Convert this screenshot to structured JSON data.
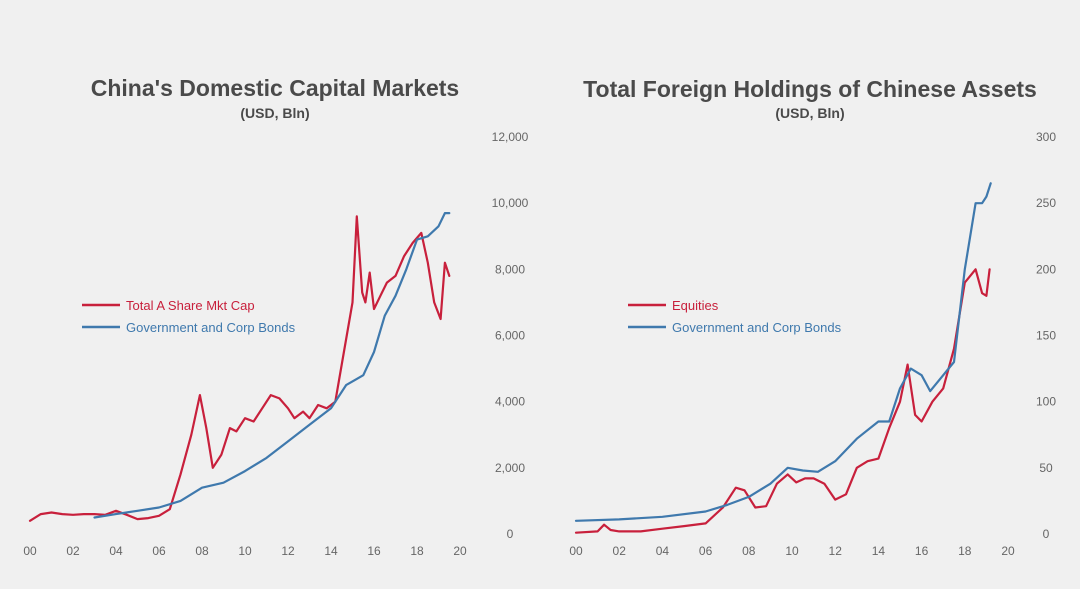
{
  "colors": {
    "red": "#c8203c",
    "blue": "#3f79ad",
    "text": "#4a4a4a",
    "tick": "#666666",
    "background": "#f0f0f0"
  },
  "chart_data": [
    {
      "type": "line",
      "title": "China's Domestic Capital Markets",
      "subtitle": "(USD, Bln)",
      "xlabel": "",
      "ylabel": "",
      "xlim": [
        2000,
        2020
      ],
      "ylim": [
        0,
        12000
      ],
      "x_ticks": [
        "00",
        "02",
        "04",
        "06",
        "08",
        "10",
        "12",
        "14",
        "16",
        "18",
        "20"
      ],
      "y_ticks": [
        "0",
        "2,000",
        "4,000",
        "6,000",
        "8,000",
        "10,000",
        "12,000"
      ],
      "y_axis_side": "right",
      "legend_position": "middle-left",
      "series": [
        {
          "name": "Total A Share Mkt Cap",
          "color": "#c8203c",
          "x": [
            2000,
            2000.5,
            2001,
            2001.5,
            2002,
            2002.5,
            2003,
            2003.5,
            2004,
            2004.5,
            2005,
            2005.5,
            2006,
            2006.5,
            2007,
            2007.5,
            2007.9,
            2008.2,
            2008.5,
            2008.9,
            2009.3,
            2009.6,
            2010,
            2010.4,
            2010.8,
            2011.2,
            2011.6,
            2012,
            2012.3,
            2012.7,
            2013,
            2013.4,
            2013.8,
            2014.2,
            2014.6,
            2015.0,
            2015.2,
            2015.45,
            2015.6,
            2015.8,
            2016,
            2016.3,
            2016.6,
            2017,
            2017.4,
            2017.8,
            2018.2,
            2018.5,
            2018.8,
            2019.1,
            2019.3,
            2019.5
          ],
          "values": [
            400,
            600,
            650,
            600,
            580,
            600,
            600,
            580,
            700,
            580,
            450,
            480,
            550,
            750,
            1800,
            3000,
            4200,
            3200,
            2000,
            2400,
            3200,
            3100,
            3500,
            3400,
            3800,
            4200,
            4100,
            3800,
            3500,
            3700,
            3500,
            3900,
            3800,
            4000,
            5500,
            7000,
            9600,
            7300,
            7000,
            7900,
            6800,
            7200,
            7600,
            7800,
            8400,
            8800,
            9100,
            8200,
            7000,
            6500,
            8200,
            7800
          ]
        },
        {
          "name": "Government and Corp Bonds",
          "color": "#3f79ad",
          "x": [
            2003,
            2004,
            2005,
            2006,
            2007,
            2008,
            2009,
            2010,
            2011,
            2012,
            2013,
            2014,
            2014.7,
            2015.5,
            2016,
            2016.5,
            2017,
            2017.5,
            2018,
            2018.5,
            2019,
            2019.3,
            2019.5
          ],
          "values": [
            500,
            600,
            700,
            800,
            1000,
            1400,
            1550,
            1900,
            2300,
            2800,
            3300,
            3800,
            4500,
            4800,
            5500,
            6600,
            7200,
            8000,
            8900,
            9000,
            9300,
            9700,
            9700
          ]
        }
      ]
    },
    {
      "type": "line",
      "title": "Total Foreign Holdings of Chinese Assets",
      "subtitle": "(USD, Bln)",
      "xlabel": "",
      "ylabel": "",
      "xlim": [
        2000,
        2020
      ],
      "ylim": [
        0,
        300
      ],
      "x_ticks": [
        "00",
        "02",
        "04",
        "06",
        "08",
        "10",
        "12",
        "14",
        "16",
        "18",
        "20"
      ],
      "y_ticks": [
        "0",
        "50",
        "100",
        "150",
        "200",
        "250",
        "300"
      ],
      "y_axis_side": "right",
      "legend_position": "middle-left",
      "series": [
        {
          "name": "Equities",
          "color": "#c8203c",
          "x": [
            2000,
            2001,
            2001.3,
            2001.6,
            2002,
            2003,
            2004,
            2005,
            2006,
            2006.8,
            2007.4,
            2007.8,
            2008.3,
            2008.8,
            2009.3,
            2009.8,
            2010.2,
            2010.6,
            2011,
            2011.5,
            2012,
            2012.5,
            2013,
            2013.5,
            2014,
            2014.5,
            2015,
            2015.35,
            2015.7,
            2016,
            2016.5,
            2017,
            2017.5,
            2018,
            2018.5,
            2018.8,
            2019,
            2019.15
          ],
          "values": [
            1,
            2,
            7,
            3,
            2,
            2,
            4,
            6,
            8,
            20,
            35,
            33,
            20,
            21,
            38,
            45,
            39,
            42,
            42,
            38,
            26,
            30,
            50,
            55,
            57,
            80,
            100,
            128,
            90,
            85,
            100,
            110,
            140,
            190,
            200,
            182,
            180,
            200
          ]
        },
        {
          "name": "Government and Corp Bonds",
          "color": "#3f79ad",
          "x": [
            2000,
            2002,
            2004,
            2006,
            2007,
            2008,
            2009,
            2009.8,
            2010.5,
            2011.2,
            2012,
            2013,
            2014,
            2014.5,
            2015,
            2015.5,
            2016,
            2016.4,
            2017,
            2017.5,
            2018,
            2018.5,
            2018.8,
            2019,
            2019.2
          ],
          "values": [
            10,
            11,
            13,
            17,
            22,
            28,
            38,
            50,
            48,
            47,
            55,
            72,
            85,
            85,
            110,
            125,
            120,
            108,
            120,
            130,
            200,
            250,
            250,
            255,
            265
          ]
        }
      ]
    }
  ]
}
